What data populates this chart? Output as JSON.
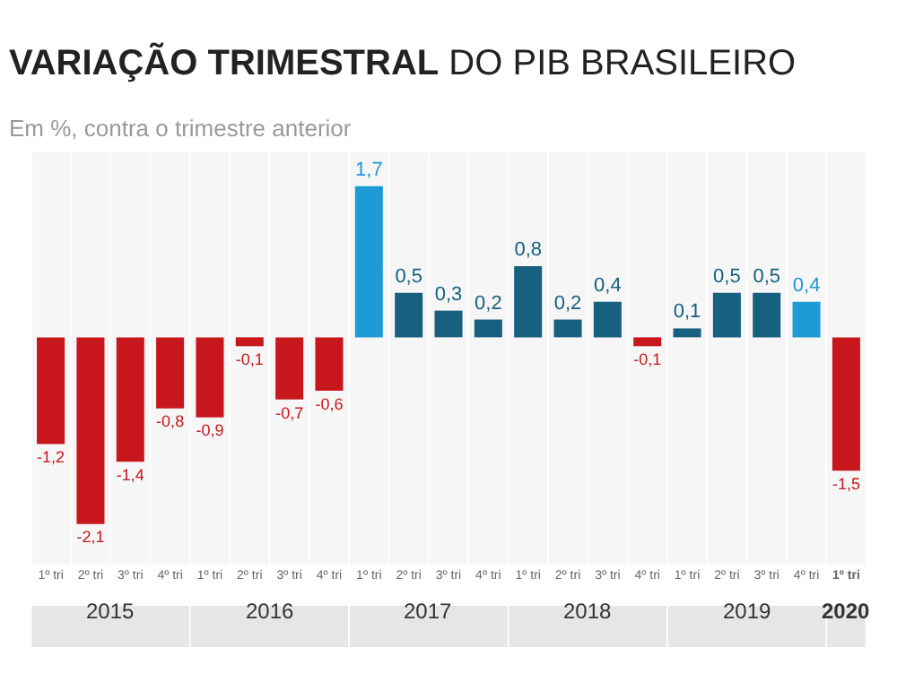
{
  "chart_data": {
    "type": "bar",
    "title": "VARIAÇÃO TRIMESTRAL DO PIB BRASILEIRO",
    "subtitle": "Em %, contra o trimestre anterior",
    "categories": [
      "1º tri",
      "2º tri",
      "3º tri",
      "4º tri",
      "1º tri",
      "2º tri",
      "3º tri",
      "4º tri",
      "1º tri",
      "2º tri",
      "3º tri",
      "4º tri",
      "1º tri",
      "2º tri",
      "3º tri",
      "4º tri",
      "1º tri",
      "2º tri",
      "3º tri",
      "4º tri",
      "1º tri"
    ],
    "values": [
      -1.2,
      -2.1,
      -1.4,
      -0.8,
      -0.9,
      -0.1,
      -0.7,
      -0.6,
      1.7,
      0.5,
      0.3,
      0.2,
      0.8,
      0.2,
      0.4,
      -0.1,
      0.1,
      0.5,
      0.5,
      0.4,
      -1.5
    ],
    "colors": [
      "#c8161d",
      "#c8161d",
      "#c8161d",
      "#c8161d",
      "#c8161d",
      "#c8161d",
      "#c8161d",
      "#c8161d",
      "#1e9ad6",
      "#17607f",
      "#17607f",
      "#17607f",
      "#17607f",
      "#17607f",
      "#17607f",
      "#c8161d",
      "#17607f",
      "#17607f",
      "#17607f",
      "#1e9ad6",
      "#c8161d"
    ],
    "value_labels": [
      "-1,2",
      "-2,1",
      "-1,4",
      "-0,8",
      "-0,9",
      "-0,1",
      "-0,7",
      "-0,6",
      "1,7",
      "0,5",
      "0,3",
      "0,2",
      "0,8",
      "0,2",
      "0,4",
      "-0,1",
      "0,1",
      "0,5",
      "0,5",
      "0,4",
      "-1,5"
    ],
    "annotations": [
      "2015",
      "2016",
      "2017",
      "2018",
      "2019",
      "2020"
    ]
  }
}
